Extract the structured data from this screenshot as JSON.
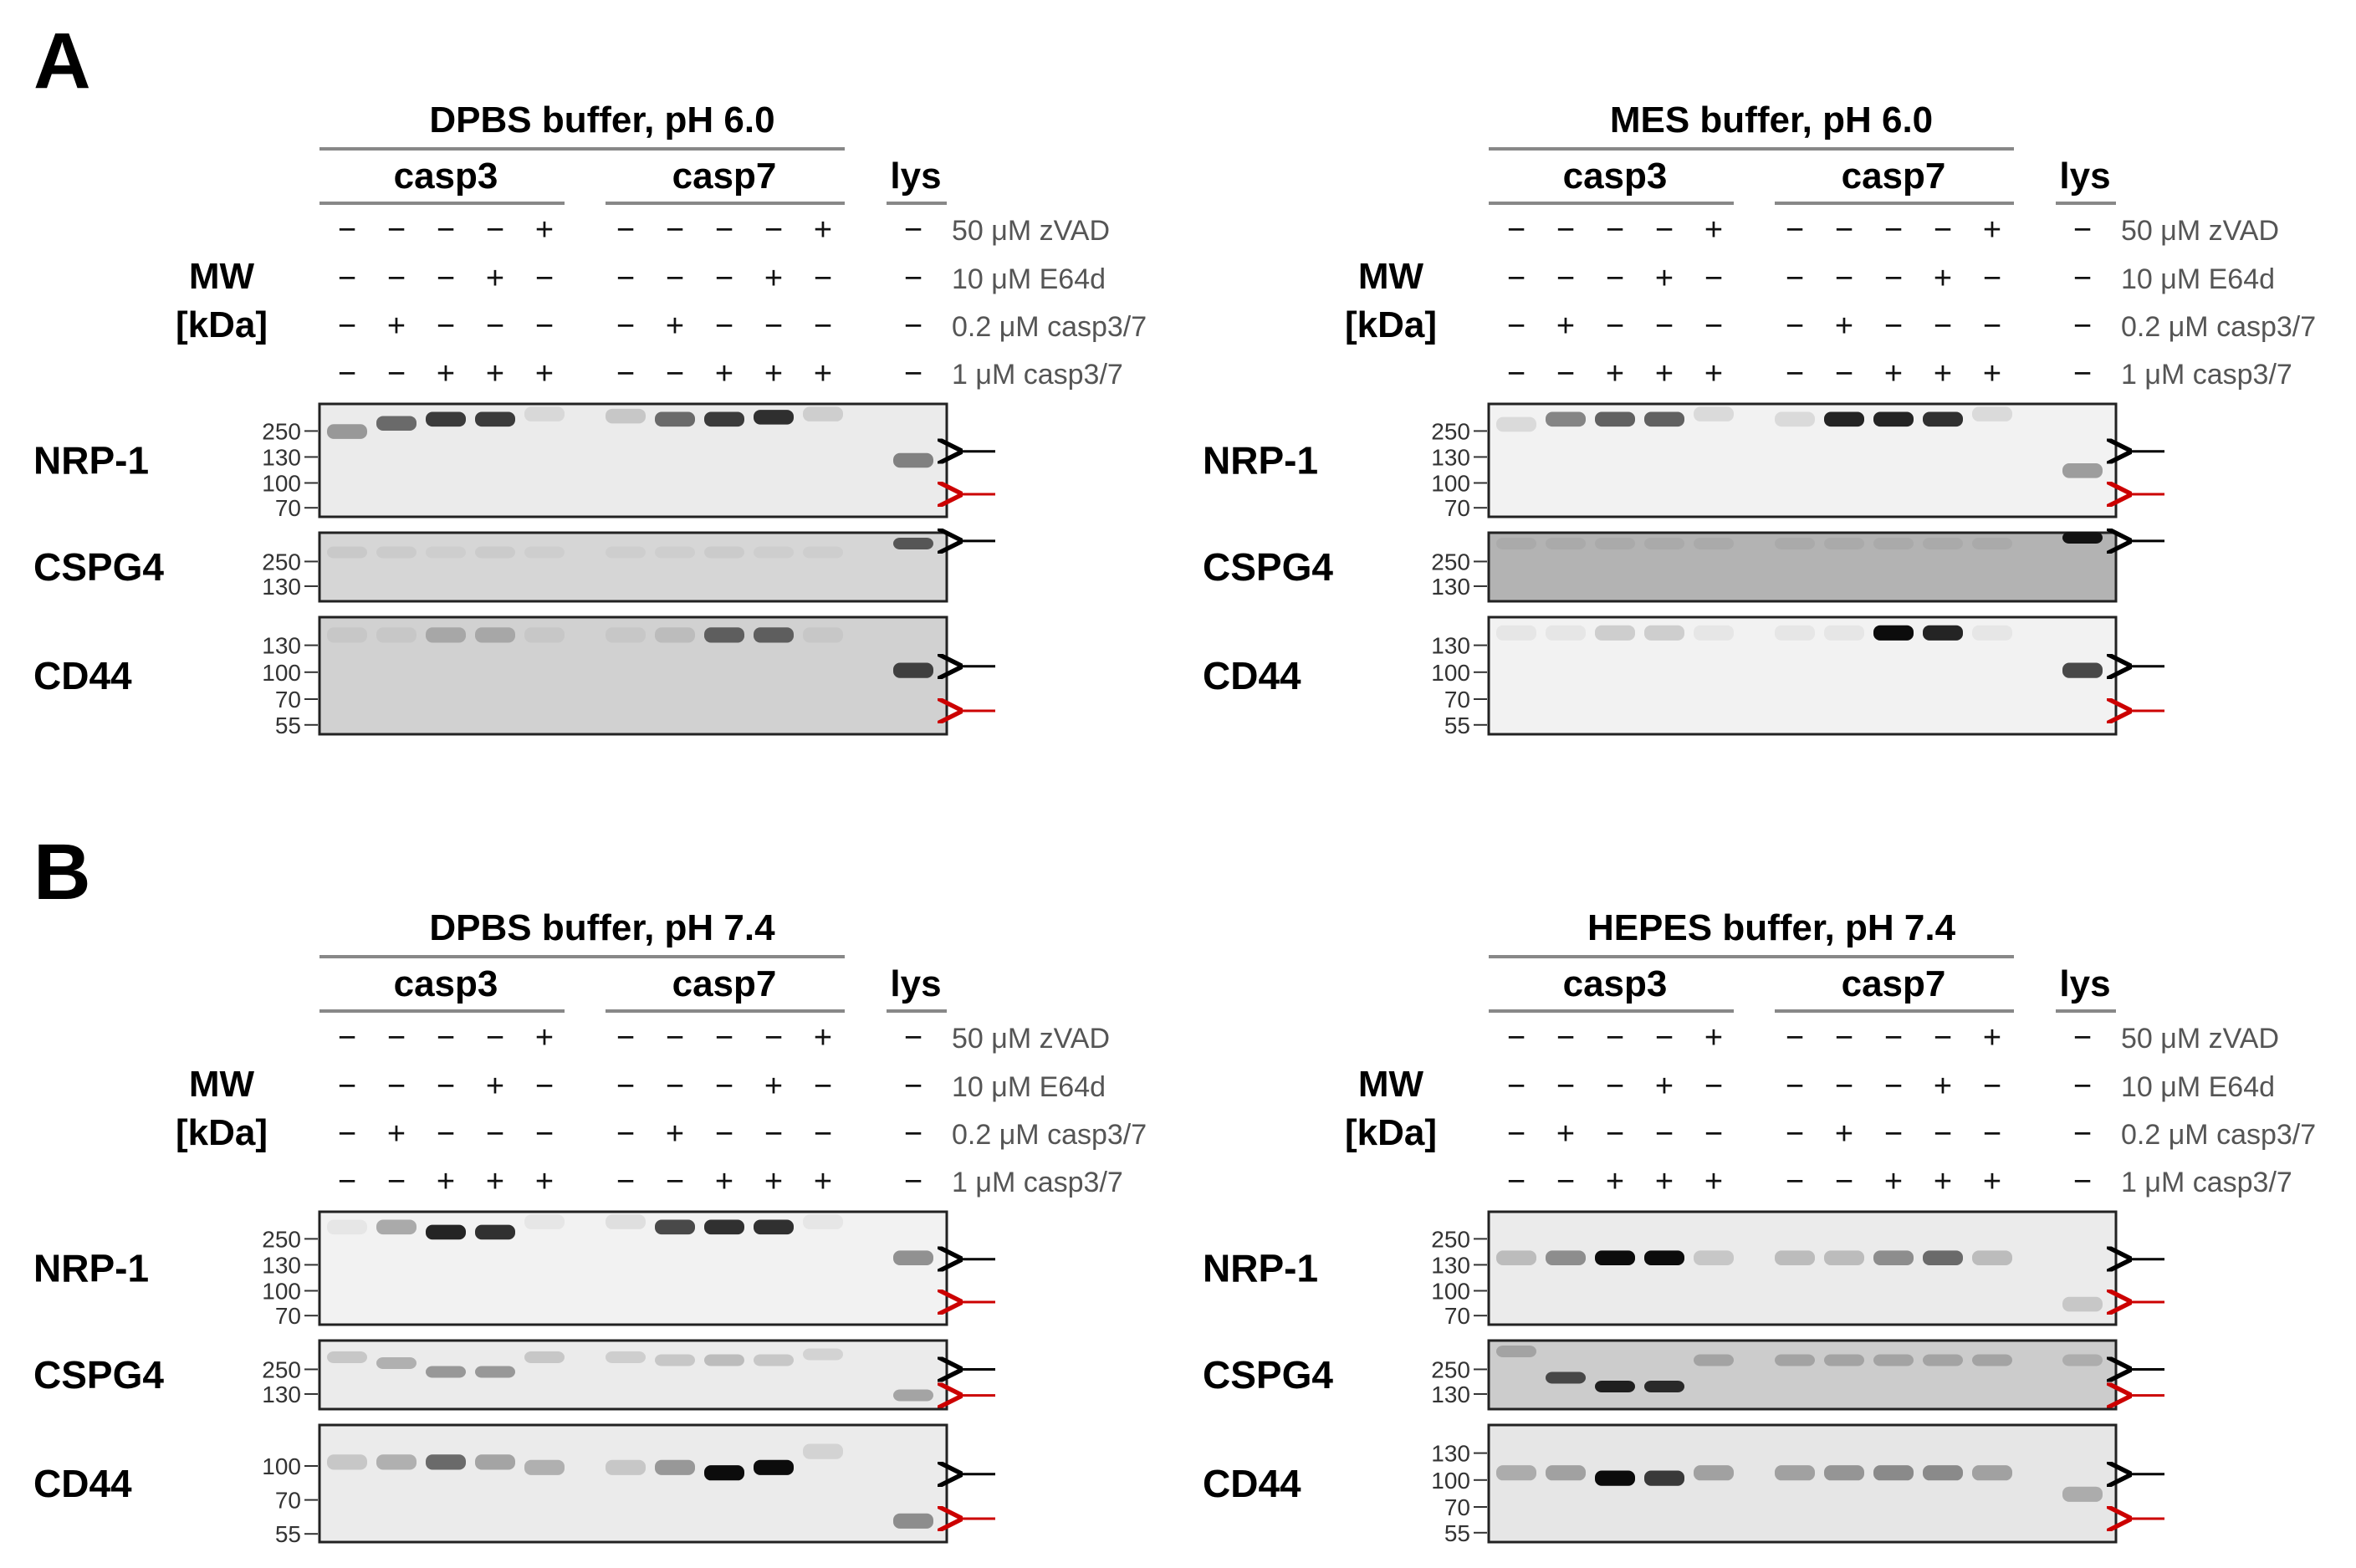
{
  "panel_labels": {
    "a": "A",
    "b": "B"
  },
  "mw_label": {
    "line1": "MW",
    "line2": "[kDa]"
  },
  "common": {
    "group1": "casp3",
    "group2": "casp7",
    "lysate": "lys",
    "treatments": [
      "50 μM zVAD",
      "10 μM E64d",
      "0.2 μM casp3/7",
      "1 μM casp3/7"
    ],
    "signs": [
      [
        "−",
        "−",
        "−",
        "−",
        "+",
        "−",
        "−",
        "−",
        "−",
        "+",
        "−"
      ],
      [
        "−",
        "−",
        "−",
        "+",
        "−",
        "−",
        "−",
        "−",
        "+",
        "−",
        "−"
      ],
      [
        "−",
        "+",
        "−",
        "−",
        "−",
        "−",
        "+",
        "−",
        "−",
        "−",
        "−"
      ],
      [
        "−",
        "−",
        "+",
        "+",
        "+",
        "−",
        "−",
        "+",
        "+",
        "+",
        "−"
      ]
    ],
    "blot_names": [
      "NRP-1",
      "CSPG4",
      "CD44"
    ]
  },
  "colors": {
    "full_length_arrow": "#000000",
    "cleavage_arrow": "#cc0000"
  },
  "panels": [
    {
      "buffer": "DPBS buffer, pH 6.0",
      "blots": [
        {
          "name": "NRP-1",
          "markers": [
            "250",
            "130",
            "100",
            "70"
          ],
          "bg": 0.92,
          "bands": [
            [
              0.22,
              0.35
            ],
            [
              0.14,
              0.55
            ],
            [
              0.1,
              0.75
            ],
            [
              0.1,
              0.75
            ],
            [
              0.05,
              0.08
            ],
            [
              0.07,
              0.15
            ],
            [
              0.1,
              0.55
            ],
            [
              0.1,
              0.75
            ],
            [
              0.08,
              0.8
            ],
            [
              0.05,
              0.12
            ],
            [
              0.5,
              0.45
            ]
          ],
          "arrows": [
            "black",
            "red"
          ]
        },
        {
          "name": "CSPG4",
          "markers": [
            "250",
            "130"
          ],
          "bg": 0.84,
          "bands": [
            [
              0.25,
              0.06
            ],
            [
              0.25,
              0.05
            ],
            [
              0.25,
              0.04
            ],
            [
              0.25,
              0.05
            ],
            [
              0.25,
              0.04
            ],
            [
              0.25,
              0.04
            ],
            [
              0.25,
              0.04
            ],
            [
              0.25,
              0.05
            ],
            [
              0.25,
              0.04
            ],
            [
              0.25,
              0.04
            ],
            [
              0.1,
              0.6
            ]
          ],
          "arrows": [
            "black"
          ]
        },
        {
          "name": "CD44",
          "markers": [
            "130",
            "100",
            "70",
            "55"
          ],
          "bg": 0.82,
          "bands": [
            [
              0.12,
              0.05
            ],
            [
              0.12,
              0.05
            ],
            [
              0.12,
              0.2
            ],
            [
              0.12,
              0.2
            ],
            [
              0.12,
              0.05
            ],
            [
              0.12,
              0.05
            ],
            [
              0.12,
              0.1
            ],
            [
              0.12,
              0.55
            ],
            [
              0.12,
              0.55
            ],
            [
              0.12,
              0.05
            ],
            [
              0.45,
              0.7
            ]
          ],
          "arrows": [
            "black",
            "red"
          ]
        }
      ]
    },
    {
      "buffer": "MES buffer, pH 6.0",
      "blots": [
        {
          "name": "NRP-1",
          "markers": [
            "250",
            "130",
            "100",
            "70"
          ],
          "bg": 0.95,
          "bands": [
            [
              0.15,
              0.1
            ],
            [
              0.1,
              0.45
            ],
            [
              0.1,
              0.6
            ],
            [
              0.1,
              0.6
            ],
            [
              0.05,
              0.1
            ],
            [
              0.1,
              0.1
            ],
            [
              0.1,
              0.85
            ],
            [
              0.1,
              0.85
            ],
            [
              0.1,
              0.8
            ],
            [
              0.05,
              0.1
            ],
            [
              0.6,
              0.35
            ]
          ],
          "arrows": [
            "black",
            "red"
          ]
        },
        {
          "name": "CSPG4",
          "markers": [
            "250",
            "130"
          ],
          "bg": 0.7,
          "bands": [
            [
              0.1,
              0.05
            ],
            [
              0.1,
              0.05
            ],
            [
              0.1,
              0.05
            ],
            [
              0.1,
              0.05
            ],
            [
              0.1,
              0.05
            ],
            [
              0.1,
              0.05
            ],
            [
              0.1,
              0.05
            ],
            [
              0.1,
              0.05
            ],
            [
              0.1,
              0.05
            ],
            [
              0.1,
              0.05
            ],
            [
              0.0,
              0.9
            ]
          ],
          "arrows": [
            "black"
          ]
        },
        {
          "name": "CD44",
          "markers": [
            "130",
            "100",
            "70",
            "55"
          ],
          "bg": 0.95,
          "bands": [
            [
              0.1,
              0.05
            ],
            [
              0.1,
              0.05
            ],
            [
              0.1,
              0.15
            ],
            [
              0.1,
              0.15
            ],
            [
              0.1,
              0.05
            ],
            [
              0.1,
              0.05
            ],
            [
              0.1,
              0.05
            ],
            [
              0.1,
              0.95
            ],
            [
              0.1,
              0.85
            ],
            [
              0.1,
              0.05
            ],
            [
              0.45,
              0.7
            ]
          ],
          "arrows": [
            "black",
            "red"
          ]
        }
      ]
    },
    {
      "buffer": "DPBS buffer, pH 7.4",
      "blots": [
        {
          "name": "NRP-1",
          "markers": [
            "250",
            "130",
            "100",
            "70"
          ],
          "bg": 0.95,
          "bands": [
            [
              0.1,
              0.05
            ],
            [
              0.1,
              0.3
            ],
            [
              0.15,
              0.85
            ],
            [
              0.15,
              0.8
            ],
            [
              0.05,
              0.05
            ],
            [
              0.05,
              0.08
            ],
            [
              0.1,
              0.7
            ],
            [
              0.1,
              0.8
            ],
            [
              0.1,
              0.8
            ],
            [
              0.05,
              0.05
            ],
            [
              0.4,
              0.4
            ]
          ],
          "arrows": [
            "black",
            "red"
          ]
        },
        {
          "name": "CSPG4",
          "markers": [
            "250",
            "130"
          ],
          "bg": 0.92,
          "bands": [
            [
              0.2,
              0.15
            ],
            [
              0.3,
              0.25
            ],
            [
              0.45,
              0.35
            ],
            [
              0.45,
              0.35
            ],
            [
              0.2,
              0.15
            ],
            [
              0.2,
              0.12
            ],
            [
              0.25,
              0.15
            ],
            [
              0.25,
              0.2
            ],
            [
              0.25,
              0.15
            ],
            [
              0.15,
              0.1
            ],
            [
              0.85,
              0.3
            ]
          ],
          "arrows": [
            "black",
            "red"
          ]
        },
        {
          "name": "CD44",
          "markers": [
            "100",
            "70",
            "55"
          ],
          "bg": 0.92,
          "bands": [
            [
              0.3,
              0.15
            ],
            [
              0.3,
              0.25
            ],
            [
              0.3,
              0.55
            ],
            [
              0.3,
              0.3
            ],
            [
              0.35,
              0.25
            ],
            [
              0.35,
              0.15
            ],
            [
              0.35,
              0.35
            ],
            [
              0.4,
              0.95
            ],
            [
              0.35,
              0.95
            ],
            [
              0.2,
              0.1
            ],
            [
              0.85,
              0.4
            ]
          ],
          "arrows": [
            "black",
            "red"
          ]
        }
      ]
    },
    {
      "buffer": "HEPES buffer, pH 7.4",
      "blots": [
        {
          "name": "NRP-1",
          "markers": [
            "250",
            "130",
            "100",
            "70"
          ],
          "bg": 0.92,
          "bands": [
            [
              0.4,
              0.2
            ],
            [
              0.4,
              0.4
            ],
            [
              0.4,
              0.95
            ],
            [
              0.4,
              0.95
            ],
            [
              0.4,
              0.15
            ],
            [
              0.4,
              0.2
            ],
            [
              0.4,
              0.2
            ],
            [
              0.4,
              0.4
            ],
            [
              0.4,
              0.55
            ],
            [
              0.4,
              0.2
            ],
            [
              0.85,
              0.15
            ]
          ],
          "arrows": [
            "black",
            "red"
          ]
        },
        {
          "name": "CSPG4",
          "markers": [
            "250",
            "130"
          ],
          "bg": 0.8,
          "bands": [
            [
              0.1,
              0.2
            ],
            [
              0.55,
              0.65
            ],
            [
              0.7,
              0.85
            ],
            [
              0.7,
              0.8
            ],
            [
              0.25,
              0.2
            ],
            [
              0.25,
              0.2
            ],
            [
              0.25,
              0.2
            ],
            [
              0.25,
              0.2
            ],
            [
              0.25,
              0.2
            ],
            [
              0.25,
              0.2
            ],
            [
              0.25,
              0.15
            ]
          ],
          "arrows": [
            "black",
            "red"
          ]
        },
        {
          "name": "CD44",
          "markers": [
            "130",
            "100",
            "70",
            "55"
          ],
          "bg": 0.9,
          "bands": [
            [
              0.4,
              0.25
            ],
            [
              0.4,
              0.3
            ],
            [
              0.45,
              0.95
            ],
            [
              0.45,
              0.75
            ],
            [
              0.4,
              0.3
            ],
            [
              0.4,
              0.3
            ],
            [
              0.4,
              0.35
            ],
            [
              0.4,
              0.4
            ],
            [
              0.4,
              0.4
            ],
            [
              0.4,
              0.3
            ],
            [
              0.6,
              0.25
            ]
          ],
          "arrows": [
            "black",
            "red"
          ]
        }
      ]
    }
  ]
}
